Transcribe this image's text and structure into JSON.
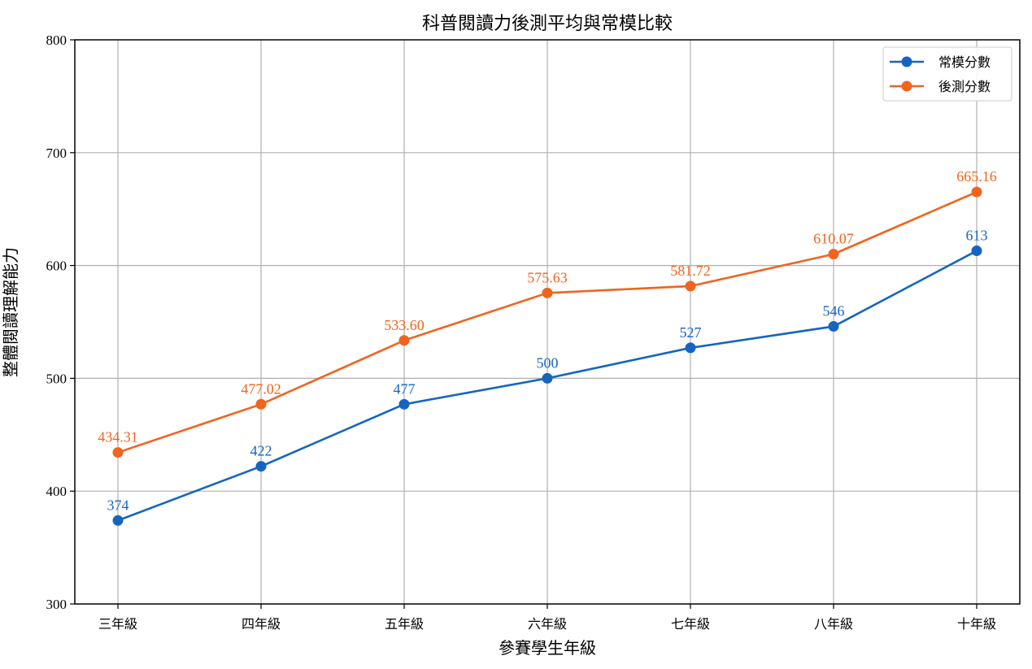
{
  "chart_data": {
    "type": "line",
    "title": "科普閱讀力後測平均與常模比較",
    "xlabel": "參賽學生年級",
    "ylabel": "整體閱讀理解能力",
    "categories": [
      "三年級",
      "四年級",
      "五年級",
      "六年級",
      "七年級",
      "八年級",
      "十年級"
    ],
    "ylim": [
      300,
      800
    ],
    "yticks": [
      300,
      400,
      500,
      600,
      700,
      800
    ],
    "grid": true,
    "legend_position": "top-right",
    "series": [
      {
        "name": "常模分數",
        "color": "#1565c0",
        "values": [
          374,
          422,
          477,
          500,
          527,
          546,
          613
        ],
        "labels": [
          "374",
          "422",
          "477",
          "500",
          "527",
          "546",
          "613"
        ]
      },
      {
        "name": "後測分數",
        "color": "#f0641e",
        "values": [
          434.31,
          477.02,
          533.6,
          575.63,
          581.72,
          610.07,
          665.16
        ],
        "labels": [
          "434.31",
          "477.02",
          "533.60",
          "575.63",
          "581.72",
          "610.07",
          "665.16"
        ]
      }
    ]
  }
}
